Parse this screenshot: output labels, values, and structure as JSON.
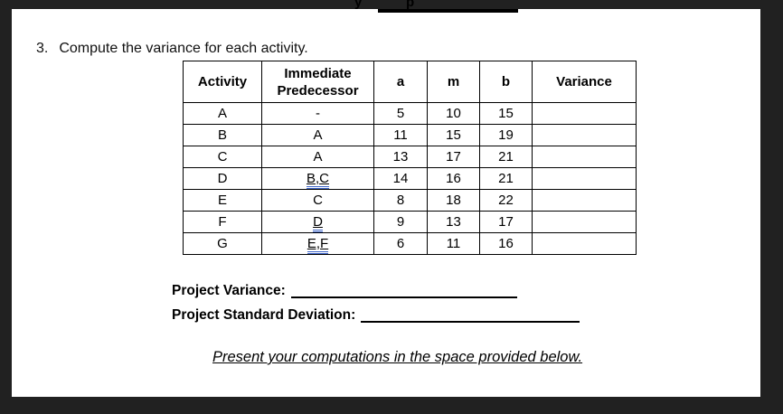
{
  "colors": {
    "ink": "#000000",
    "frame-dark": "#212121",
    "grammar-blue": "#3c64c8"
  },
  "clipped_line": {
    "fragments": [
      "y",
      "p"
    ],
    "has_blank_underline": true
  },
  "question": {
    "number": "3.",
    "text": "Compute the variance for each activity."
  },
  "table": {
    "headers": [
      "Activity",
      "Immediate Predecessor",
      "a",
      "m",
      "b",
      "Variance"
    ],
    "rows": [
      {
        "cells": [
          "A",
          "-",
          "5",
          "10",
          "15",
          ""
        ],
        "linked_cells": []
      },
      {
        "cells": [
          "B",
          "A",
          "11",
          "15",
          "19",
          ""
        ],
        "linked_cells": []
      },
      {
        "cells": [
          "C",
          "A",
          "13",
          "17",
          "21",
          ""
        ],
        "linked_cells": []
      },
      {
        "cells": [
          "D",
          "B,C",
          "14",
          "16",
          "21",
          ""
        ],
        "linked_cells": [
          1
        ]
      },
      {
        "cells": [
          "E",
          "C",
          "8",
          "18",
          "22",
          ""
        ],
        "linked_cells": []
      },
      {
        "cells": [
          "F",
          "D",
          "9",
          "13",
          "17",
          ""
        ],
        "linked_cells": [
          1
        ]
      },
      {
        "cells": [
          "G",
          "E,F",
          "6",
          "11",
          "16",
          ""
        ],
        "linked_cells": [
          1
        ]
      }
    ]
  },
  "fields": [
    {
      "label": "Project Variance:"
    },
    {
      "label": "Project Standard Deviation:"
    }
  ],
  "footer_note": "Present your computations in the space provided below."
}
